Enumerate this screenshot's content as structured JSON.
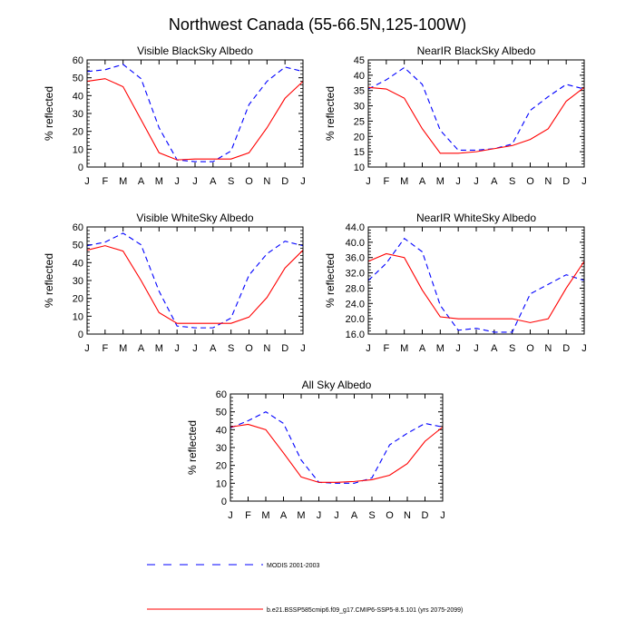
{
  "figure": {
    "title": "Northwest Canada (55-66.5N,125-100W)"
  },
  "months": [
    "J",
    "F",
    "M",
    "A",
    "M",
    "J",
    "J",
    "A",
    "S",
    "O",
    "N",
    "D",
    "J"
  ],
  "legend": {
    "placement": "bottom-center",
    "entries": [
      {
        "label": "MODIS 2001-2003",
        "color": "#0000ff",
        "dash": true
      },
      {
        "label": "b.e21.BSSP585cmip6.f09_g17.CMIP6-SSP5-8.5.101 (yrs 2075-2099)",
        "color": "#ff0000",
        "dash": false
      }
    ]
  },
  "chart_data": [
    {
      "type": "line",
      "title": "Visible BlackSky Albedo",
      "ylabel": "% reflected",
      "ylim": [
        0,
        60
      ],
      "yticks": [
        "0",
        "10",
        "20",
        "30",
        "40",
        "50",
        "60"
      ],
      "yticks_values": [
        0,
        10,
        20,
        30,
        40,
        50,
        60
      ],
      "series": [
        {
          "name": "MODIS 2001-2003",
          "color": "#0000ff",
          "dash": true,
          "values": [
            53.5,
            54.5,
            57.5,
            49.5,
            22,
            4,
            3,
            3,
            9,
            35,
            48,
            56,
            53.5
          ]
        },
        {
          "name": "b.e21.BSSP585cmip6.f09_g17.CMIP6-SSP5-8.5.101 (yrs 2075-2099)",
          "color": "#ff0000",
          "dash": false,
          "values": [
            48,
            49.5,
            45,
            26.5,
            8,
            4,
            4.5,
            4.5,
            4.5,
            8,
            22,
            38.5,
            48
          ]
        }
      ]
    },
    {
      "type": "line",
      "title": "NearIR BlackSky Albedo",
      "ylabel": "% reflected",
      "ylim": [
        10,
        45
      ],
      "yticks": [
        "10",
        "15",
        "20",
        "25",
        "30",
        "35",
        "40",
        "45"
      ],
      "yticks_values": [
        10,
        15,
        20,
        25,
        30,
        35,
        40,
        45
      ],
      "series": [
        {
          "name": "MODIS 2001-2003",
          "color": "#0000ff",
          "dash": true,
          "values": [
            35.5,
            38.5,
            42.5,
            37,
            22,
            15.5,
            15.5,
            16,
            17.5,
            28.5,
            33,
            37,
            35.5
          ]
        },
        {
          "name": "b.e21.BSSP585cmip6.f09_g17.CMIP6-SSP5-8.5.101 (yrs 2075-2099)",
          "color": "#ff0000",
          "dash": false,
          "values": [
            36,
            35.5,
            32.5,
            22.5,
            14.5,
            14.5,
            15,
            16,
            17,
            19,
            22.5,
            31.5,
            36
          ]
        }
      ]
    },
    {
      "type": "line",
      "title": "Visible WhiteSky Albedo",
      "ylabel": "% reflected",
      "ylim": [
        0,
        60
      ],
      "yticks": [
        "0",
        "10",
        "20",
        "30",
        "40",
        "50",
        "60"
      ],
      "yticks_values": [
        0,
        10,
        20,
        30,
        40,
        50,
        60
      ],
      "series": [
        {
          "name": "MODIS 2001-2003",
          "color": "#0000ff",
          "dash": true,
          "values": [
            49.5,
            51.5,
            56.5,
            50,
            24,
            4.5,
            3.5,
            3.5,
            9,
            33,
            45,
            52,
            49.5
          ]
        },
        {
          "name": "b.e21.BSSP585cmip6.f09_g17.CMIP6-SSP5-8.5.101 (yrs 2075-2099)",
          "color": "#ff0000",
          "dash": false,
          "values": [
            47,
            49.5,
            46.5,
            30,
            12,
            6,
            6,
            6,
            6,
            9.5,
            20.5,
            37,
            47
          ]
        }
      ]
    },
    {
      "type": "line",
      "title": "NearIR WhiteSky Albedo",
      "ylabel": "% reflected",
      "ylim": [
        16,
        44
      ],
      "yticks": [
        "16.0",
        "20.0",
        "24.0",
        "28.0",
        "32.0",
        "36.0",
        "40.0",
        "44.0"
      ],
      "yticks_values": [
        16,
        20,
        24,
        28,
        32,
        36,
        40,
        44
      ],
      "series": [
        {
          "name": "MODIS 2001-2003",
          "color": "#0000ff",
          "dash": true,
          "values": [
            30,
            34.5,
            41,
            37.5,
            23.5,
            17,
            17.5,
            16.5,
            16.5,
            26.5,
            29,
            31.5,
            30
          ]
        },
        {
          "name": "b.e21.BSSP585cmip6.f09_g17.CMIP6-SSP5-8.5.101 (yrs 2075-2099)",
          "color": "#ff0000",
          "dash": false,
          "values": [
            35,
            37,
            36,
            27.5,
            20.5,
            20,
            20,
            20,
            20,
            19,
            20,
            28,
            35
          ]
        }
      ]
    },
    {
      "type": "line",
      "title": "All Sky Albedo",
      "ylabel": "% reflected",
      "ylim": [
        0,
        60
      ],
      "yticks": [
        "0",
        "10",
        "20",
        "30",
        "40",
        "50",
        "60"
      ],
      "yticks_values": [
        0,
        10,
        20,
        30,
        40,
        50,
        60
      ],
      "series": [
        {
          "name": "MODIS 2001-2003",
          "color": "#0000ff",
          "dash": true,
          "values": [
            41,
            45,
            50,
            43.5,
            23,
            10.5,
            10,
            10,
            13,
            31.5,
            38,
            43.5,
            41.5
          ]
        },
        {
          "name": "b.e21.BSSP585cmip6.f09_g17.CMIP6-SSP5-8.5.101 (yrs 2075-2099)",
          "color": "#ff0000",
          "dash": false,
          "values": [
            41.5,
            43,
            40,
            27,
            13.5,
            10.5,
            10.5,
            11,
            12,
            14.5,
            21,
            33.5,
            41.5
          ]
        }
      ]
    }
  ]
}
